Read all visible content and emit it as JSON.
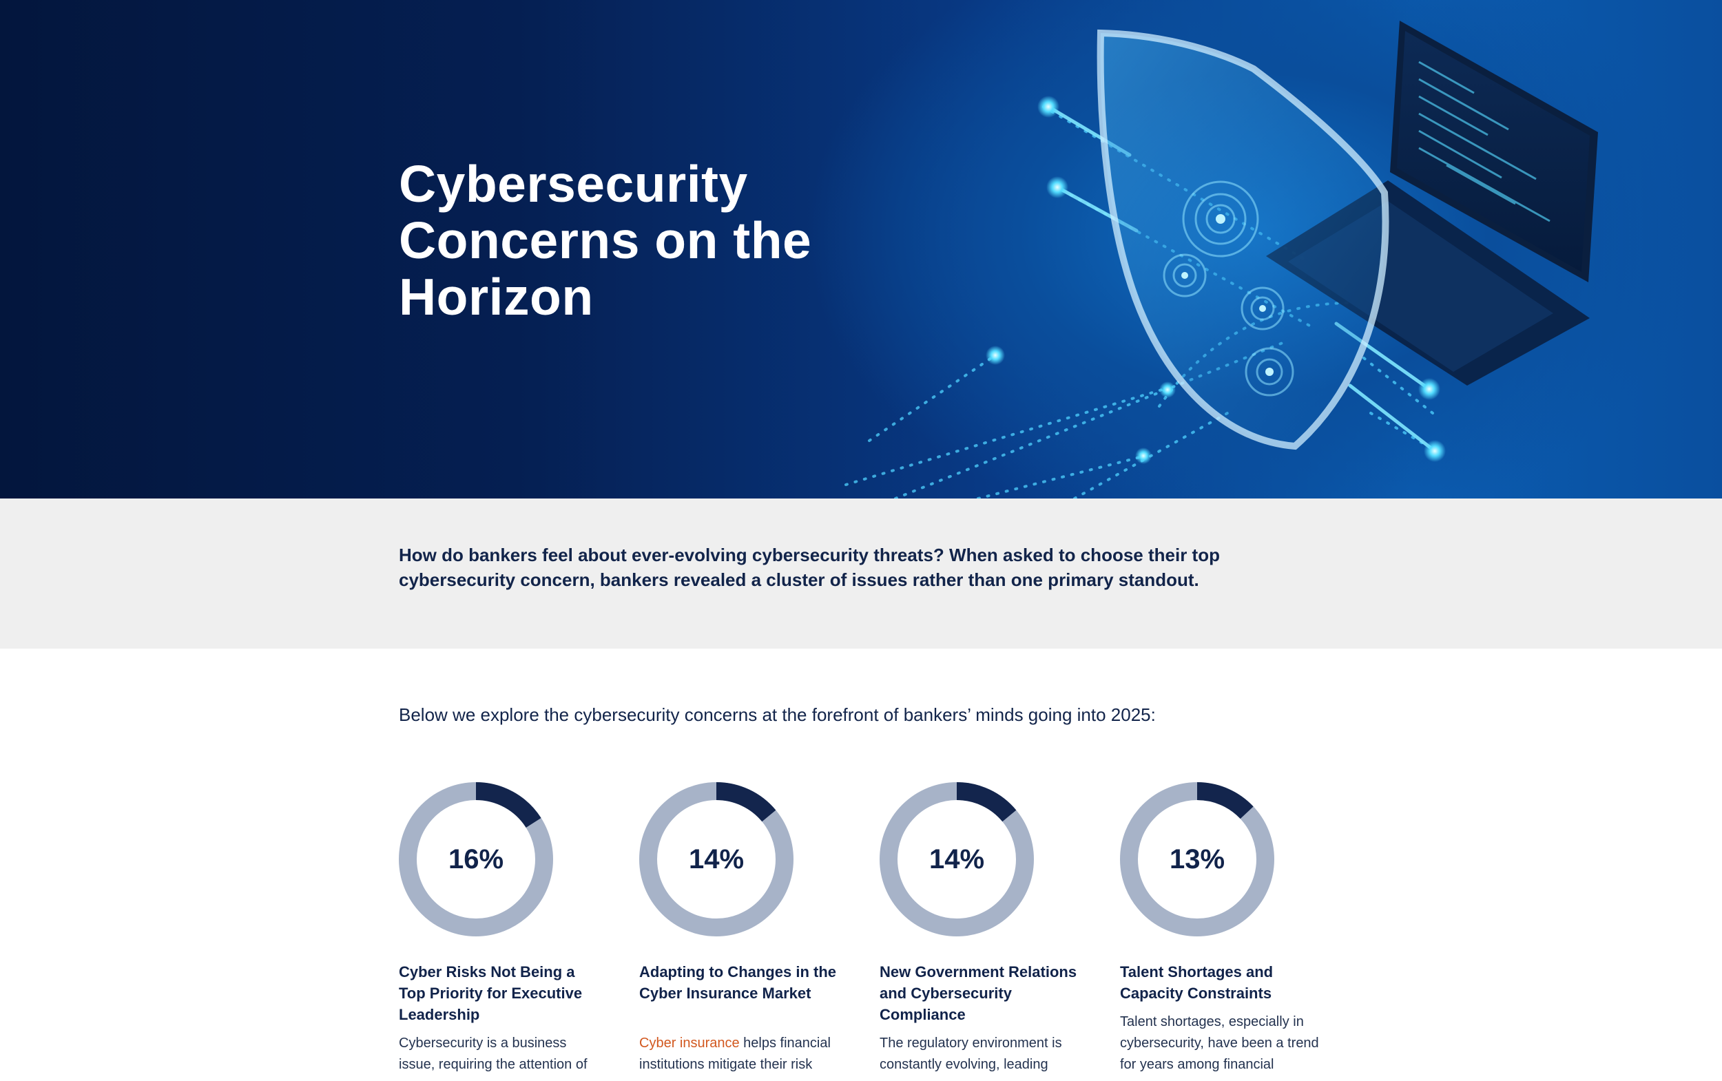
{
  "hero": {
    "title": "Cybersecurity Concerns on the Horizon",
    "colors": {
      "dark": "#03163d",
      "mid": "#083a86",
      "glow": "#4fd2ff"
    }
  },
  "intro": {
    "text": "How do bankers feel about ever-evolving cybersecurity threats? When asked to choose their top cybersecurity concern, bankers revealed a cluster of issues rather than one primary standout."
  },
  "lead": {
    "text": "Below we explore the cybersecurity concerns at the forefront of bankers’ minds going into 2025:"
  },
  "donut_colors": {
    "filled": "#13254d",
    "track": "#a7b3c8"
  },
  "stats": [
    {
      "value_label": "16%",
      "value": 16,
      "title": "Cyber Risks Not Being a Top Priority for Executive Leadership",
      "desc_link": "",
      "desc": "Cybersecurity is a business issue, requiring the attention of"
    },
    {
      "value_label": "14%",
      "value": 14,
      "title": "Adapting to Changes in the Cyber Insurance Market",
      "desc_link": "Cyber insurance",
      "desc": " helps financial institutions mitigate their risk"
    },
    {
      "value_label": "14%",
      "value": 14,
      "title": "New Government Relations and Cybersecurity Compliance",
      "desc_link": "",
      "desc": "The regulatory environment is constantly evolving, leading"
    },
    {
      "value_label": "13%",
      "value": 13,
      "title": "Talent Shortages and Capacity Constraints",
      "desc_link": "",
      "desc": "Talent shortages, especially in cybersecurity, have been a trend for years among financial"
    }
  ]
}
